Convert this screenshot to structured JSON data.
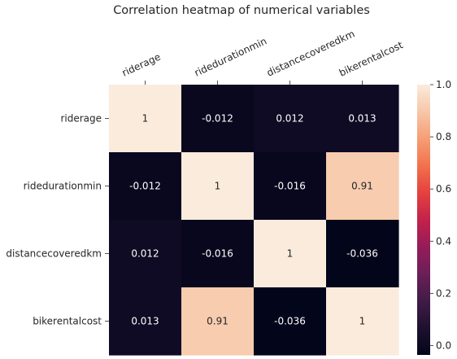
{
  "chart_data": {
    "type": "heatmap",
    "title": "Correlation heatmap of numerical variables",
    "xlabel": "",
    "ylabel": "",
    "x_categories": [
      "riderage",
      "ridedurationmin",
      "distancecoveredkm",
      "bikerentalcost"
    ],
    "y_categories": [
      "riderage",
      "ridedurationmin",
      "distancecoveredkm",
      "bikerentalcost"
    ],
    "values": [
      [
        1,
        -0.012,
        0.012,
        0.013
      ],
      [
        -0.012,
        1,
        -0.016,
        0.91
      ],
      [
        0.012,
        -0.016,
        1,
        -0.036
      ],
      [
        0.013,
        0.91,
        -0.036,
        1
      ]
    ],
    "cell_labels": [
      [
        "1",
        "-0.012",
        "0.012",
        "0.013"
      ],
      [
        "-0.012",
        "1",
        "-0.016",
        "0.91"
      ],
      [
        "0.012",
        "-0.016",
        "1",
        "-0.036"
      ],
      [
        "0.013",
        "0.91",
        "-0.036",
        "1"
      ]
    ],
    "colorbar": {
      "range": [
        -0.036,
        1.0
      ],
      "ticks": [
        0.0,
        0.2,
        0.4,
        0.6,
        0.8,
        1.0
      ],
      "tick_labels": [
        "0.0",
        "0.2",
        "0.4",
        "0.6",
        "0.8",
        "1.0"
      ],
      "colormap": "rocket"
    },
    "legend": "right",
    "grid": false
  }
}
